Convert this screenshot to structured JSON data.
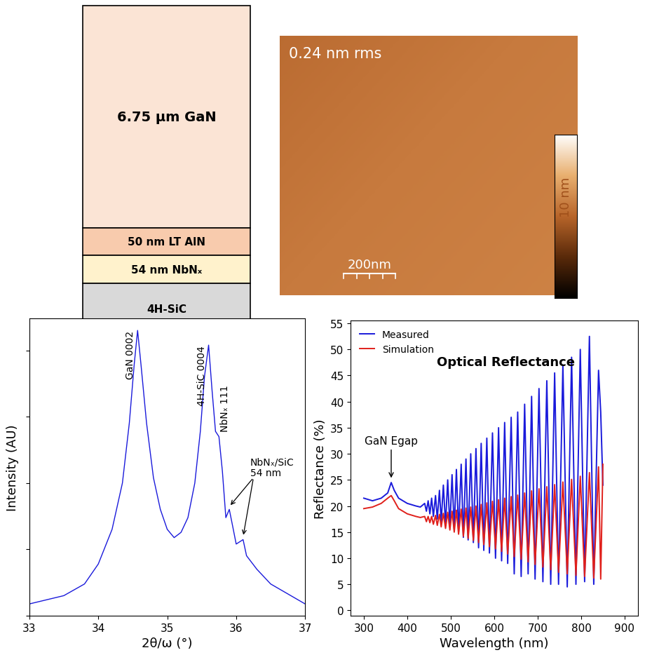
{
  "layer_stack": {
    "layers": [
      {
        "label": "6.75 µm GaN",
        "color": "#fbe4d5"
      },
      {
        "label": "50 nm LT AlN",
        "color": "#f8cbad"
      },
      {
        "label": "54 nm NbNₓ",
        "color": "#fff2cc"
      },
      {
        "label": "4H-SiC",
        "color": "#d9d9d9"
      }
    ]
  },
  "afm": {
    "rms_label": "0.24 nm rms",
    "scale_bar": "200nm",
    "colorbar_label": "10 nm"
  },
  "chart_data": [
    {
      "type": "line",
      "xlabel": "2θ/ω (°)",
      "ylabel": "Intensity (AU)",
      "log": "y",
      "xlim": [
        33,
        37
      ],
      "xticks": [
        33,
        34,
        35,
        36,
        37
      ],
      "ylim": [
        1,
        30000
      ],
      "yticks": [
        1,
        10,
        100,
        1000,
        10000
      ],
      "tick_labels": "x",
      "color": "#1a1adb",
      "x": [
        33.0,
        33.5,
        33.8,
        34.0,
        34.2,
        34.35,
        34.45,
        34.52,
        34.57,
        34.62,
        34.7,
        34.8,
        34.9,
        35.0,
        35.1,
        35.2,
        35.3,
        35.4,
        35.48,
        35.54,
        35.6,
        35.65,
        35.7,
        35.75,
        35.8,
        35.85,
        35.9,
        35.95,
        36.0,
        36.1,
        36.15,
        36.3,
        36.5,
        37.0
      ],
      "values": [
        1.5,
        2,
        3,
        6,
        20,
        100,
        800,
        6000,
        20000,
        6000,
        800,
        120,
        40,
        20,
        15,
        18,
        30,
        100,
        600,
        4000,
        12000,
        2500,
        600,
        500,
        150,
        30,
        40,
        22,
        12,
        14,
        8,
        5,
        3,
        1.5
      ],
      "peaks": [
        {
          "label": "GaN 0002",
          "x": 34.57
        },
        {
          "label": "4H-SiC 0004",
          "x": 35.6
        },
        {
          "label": "NbNₓ 111",
          "x": 35.75
        }
      ],
      "fringes": {
        "label": "NbNₓ/SiC\n54 nm",
        "x": [
          35.9,
          36.1
        ]
      }
    },
    {
      "type": "line",
      "title": "Optical Reflectance",
      "xlabel": "Wavelength (nm)",
      "ylabel": "Reflectance (%)",
      "xlim": [
        270,
        930
      ],
      "xticks": [
        300,
        400,
        500,
        600,
        700,
        800,
        900
      ],
      "ylim": [
        -1,
        55.5
      ],
      "yticks": [
        0,
        5,
        10,
        15,
        20,
        25,
        30,
        35,
        40,
        45,
        50,
        55
      ],
      "legend": "upper left",
      "x": [
        300,
        320,
        340,
        355,
        363,
        370,
        380,
        400,
        420,
        430,
        440,
        444,
        448,
        452,
        456,
        460,
        465,
        469,
        474,
        478,
        483,
        488,
        493,
        498,
        503,
        508,
        513,
        518,
        524,
        529,
        535,
        540,
        546,
        552,
        558,
        564,
        570,
        576,
        583,
        589,
        596,
        603,
        610,
        617,
        624,
        631,
        639,
        646,
        654,
        662,
        670,
        678,
        686,
        694,
        703,
        712,
        721,
        730,
        739,
        748,
        758,
        768,
        778,
        788,
        798,
        808,
        819,
        829,
        840,
        845,
        850
      ],
      "series": [
        {
          "name": "Measured",
          "color": "#1a1adb",
          "values": [
            21.5,
            21,
            21.5,
            22.5,
            24.5,
            23,
            21.5,
            20.5,
            20,
            19.8,
            20.5,
            19,
            21,
            18.5,
            21.5,
            18,
            22,
            17.5,
            23,
            17,
            24,
            16.5,
            25,
            16,
            26,
            15.5,
            27,
            15,
            28,
            14,
            29,
            13.5,
            30,
            13,
            31,
            12,
            32,
            11.5,
            33,
            11,
            34,
            10,
            35,
            9.5,
            36,
            9,
            37,
            7,
            38,
            6.5,
            39.5,
            7,
            41,
            6,
            42.5,
            5.5,
            44,
            5,
            45.5,
            5,
            47,
            4.5,
            48.5,
            5,
            50,
            5.5,
            52.5,
            5,
            46,
            38,
            24
          ]
        },
        {
          "name": "Simulation",
          "color": "#e0201b",
          "values": [
            19.5,
            19.8,
            20.5,
            21.5,
            22,
            21,
            19.5,
            18.5,
            18,
            17.8,
            18,
            17,
            18,
            16.8,
            18,
            16.5,
            18.2,
            16.3,
            18.4,
            16,
            18.6,
            15.7,
            18.8,
            15.4,
            19,
            15,
            19.2,
            14.6,
            19.4,
            14.2,
            19.6,
            13.8,
            19.8,
            13.4,
            20,
            13,
            20.3,
            12.6,
            20.6,
            12.2,
            20.9,
            11.8,
            21.2,
            11.3,
            21.5,
            10.8,
            21.8,
            10.3,
            22.1,
            9.8,
            22.5,
            9.3,
            22.9,
            8.8,
            23.3,
            8.3,
            23.7,
            7.8,
            24.1,
            7.3,
            24.6,
            7,
            25.1,
            6.7,
            25.7,
            6.5,
            26.4,
            6.2,
            27.5,
            6,
            28
          ]
        }
      ],
      "annotation": {
        "label": "GaN Egap",
        "x": 363
      }
    }
  ]
}
